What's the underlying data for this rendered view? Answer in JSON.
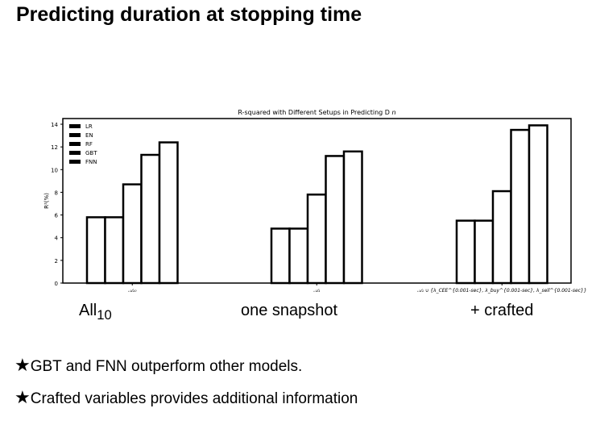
{
  "slide": {
    "title": "Predicting duration at stopping time",
    "captions": [
      {
        "main": "All",
        "sub": "10"
      },
      {
        "main": "one snapshot",
        "sub": ""
      },
      {
        "main": "+ crafted",
        "sub": ""
      }
    ],
    "bullets": [
      {
        "star": "★",
        "text": "GBT and FNN outperform other models."
      },
      {
        "star": "★",
        "text": "Crafted variables provides additional information"
      }
    ]
  },
  "chart_data": {
    "type": "bar",
    "title": "R-squared with Different Setups in Predicting D",
    "title_sub": "n",
    "ylabel": "R²(%)",
    "xlabel": "",
    "ylim": [
      0,
      14.5
    ],
    "yticks": [
      0,
      2,
      4,
      6,
      8,
      10,
      12,
      14
    ],
    "categories": [
      "𝒜₁₀",
      "𝒜₁",
      "𝒜₁ ∪ {λ_CEE^{0.001-sec}, λ_buy^{0.001-sec}, λ_sell^{0.001-sec}}"
    ],
    "series": [
      {
        "name": "LR",
        "values": [
          5.8,
          4.8,
          5.5
        ]
      },
      {
        "name": "EN",
        "values": [
          5.8,
          4.8,
          5.5
        ]
      },
      {
        "name": "RF",
        "values": [
          8.7,
          7.8,
          8.1
        ]
      },
      {
        "name": "GBT",
        "values": [
          11.3,
          11.2,
          13.5
        ]
      },
      {
        "name": "FNN",
        "values": [
          12.4,
          11.6,
          13.9
        ]
      }
    ],
    "legend_position": "top-left",
    "grid": false
  }
}
